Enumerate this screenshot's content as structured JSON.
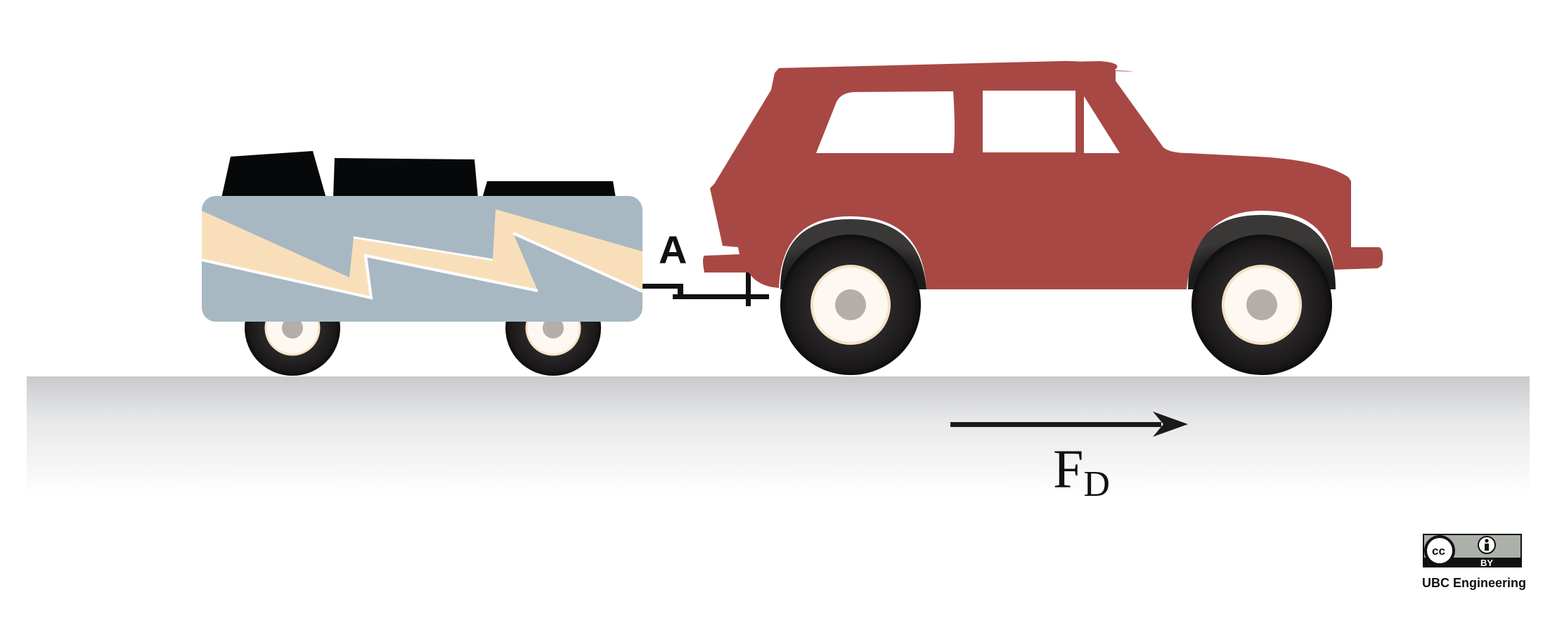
{
  "labels": {
    "point": "A",
    "force_main": "F",
    "force_sub": "D"
  },
  "license": {
    "cc_glyph": "cc",
    "by_text": "BY",
    "organization": "UBC Engineering"
  },
  "colors": {
    "car_body": "#a84844",
    "trailer_body": "#a7b8c2",
    "trailer_stripe": "#f9dfb9",
    "cargo": "#07080a",
    "tire": "#1f1d1d",
    "hubcap": "#fdf8f2",
    "hub_center": "#b5adaa",
    "road_top": "#cfd0d1",
    "road_bottom": "#ffffff",
    "arrow": "#1a1a1a"
  },
  "icons": {
    "license_badge": "creative-commons-by-icon",
    "person": "attribution-person-icon"
  }
}
